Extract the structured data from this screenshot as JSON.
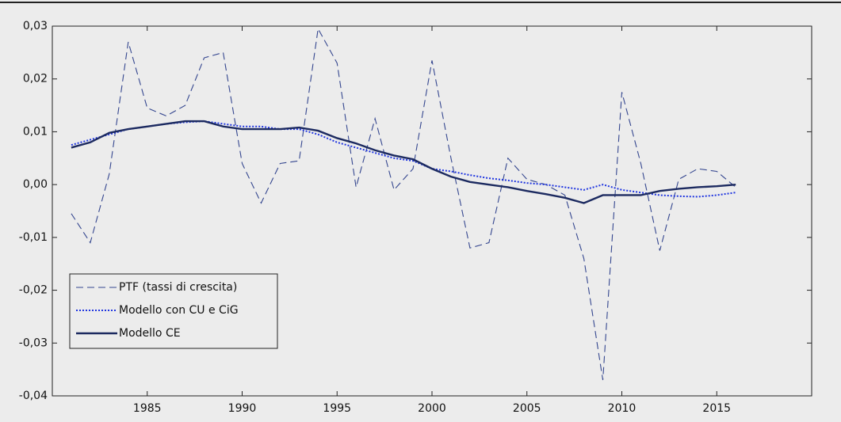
{
  "chart_data": {
    "type": "line",
    "x": [
      1981,
      1982,
      1983,
      1984,
      1985,
      1986,
      1987,
      1988,
      1989,
      1990,
      1991,
      1992,
      1993,
      1994,
      1995,
      1996,
      1997,
      1998,
      1999,
      2000,
      2001,
      2002,
      2003,
      2004,
      2005,
      2006,
      2007,
      2008,
      2009,
      2010,
      2011,
      2012,
      2013,
      2014,
      2015,
      2016
    ],
    "series": [
      {
        "name": "PTF (tassi di crescita)",
        "color": "#34468f",
        "style": "dashed",
        "values": [
          -0.0055,
          -0.011,
          0.002,
          0.027,
          0.0145,
          0.013,
          0.015,
          0.024,
          0.025,
          0.004,
          -0.0035,
          0.004,
          0.0045,
          0.0295,
          0.023,
          -0.0005,
          0.0125,
          -0.001,
          0.003,
          0.0235,
          0.005,
          -0.012,
          -0.011,
          0.005,
          0.001,
          0.0,
          -0.002,
          -0.014,
          -0.037,
          0.0175,
          0.004,
          -0.0125,
          0.001,
          0.003,
          0.0025,
          -0.0005
        ]
      },
      {
        "name": "Modello con CU e CiG",
        "color": "#1f35e0",
        "style": "dotted",
        "values": [
          0.0075,
          0.0085,
          0.0095,
          0.0105,
          0.011,
          0.0115,
          0.0118,
          0.012,
          0.0115,
          0.011,
          0.011,
          0.0105,
          0.0105,
          0.0095,
          0.008,
          0.007,
          0.006,
          0.005,
          0.0045,
          0.003,
          0.0025,
          0.0018,
          0.0012,
          0.0008,
          0.0003,
          0.0,
          -0.0005,
          -0.001,
          0.0,
          -0.001,
          -0.0015,
          -0.002,
          -0.0022,
          -0.0023,
          -0.002,
          -0.0015
        ]
      },
      {
        "name": "Modello CE",
        "color": "#1c2a60",
        "style": "solid",
        "values": [
          0.007,
          0.008,
          0.0098,
          0.0105,
          0.011,
          0.0115,
          0.012,
          0.012,
          0.011,
          0.0105,
          0.0105,
          0.0105,
          0.0108,
          0.0102,
          0.0088,
          0.0078,
          0.0065,
          0.0055,
          0.0048,
          0.003,
          0.0015,
          0.0005,
          0.0,
          -0.0005,
          -0.0012,
          -0.0018,
          -0.0025,
          -0.0035,
          -0.002,
          -0.002,
          -0.002,
          -0.0012,
          -0.0008,
          -0.0005,
          -0.0003,
          0.0
        ]
      }
    ],
    "xlim": [
      1980,
      2020
    ],
    "xticks": [
      1985,
      1990,
      1995,
      2000,
      2005,
      2010,
      2015
    ],
    "ylim": [
      -0.04,
      0.03
    ],
    "yticks": [
      {
        "value": -0.04,
        "label": "-0,04"
      },
      {
        "value": -0.03,
        "label": "-0,03"
      },
      {
        "value": -0.02,
        "label": "-0,02"
      },
      {
        "value": -0.01,
        "label": "-0,01"
      },
      {
        "value": 0,
        "label": "0,00"
      },
      {
        "value": 0.01,
        "label": "0,01"
      },
      {
        "value": 0.02,
        "label": "0,02"
      },
      {
        "value": 0.03,
        "label": "0,03"
      }
    ],
    "legend": "lower left"
  }
}
